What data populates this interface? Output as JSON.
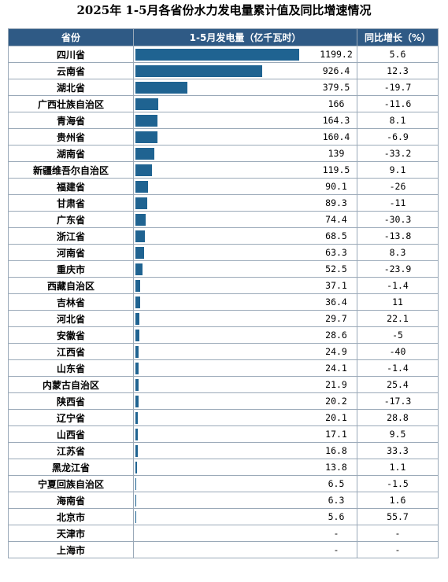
{
  "title": "2025年 1-5月各省份水力发电量累计值及同比增速情况",
  "headers": {
    "province": "省份",
    "value": "1-5月发电量（亿千瓦时）",
    "yoy": "同比增长（%）"
  },
  "chart_data": {
    "type": "bar",
    "orientation": "horizontal",
    "unit": "亿千瓦时",
    "categories": [
      "四川省",
      "云南省",
      "湖北省",
      "广西壮族自治区",
      "青海省",
      "贵州省",
      "湖南省",
      "新疆维吾尔自治区",
      "福建省",
      "甘肃省",
      "广东省",
      "浙江省",
      "河南省",
      "重庆市",
      "西藏自治区",
      "吉林省",
      "河北省",
      "安徽省",
      "江西省",
      "山东省",
      "内蒙古自治区",
      "陕西省",
      "辽宁省",
      "山西省",
      "江苏省",
      "黑龙江省",
      "宁夏回族自治区",
      "海南省",
      "北京市",
      "天津市",
      "上海市"
    ],
    "values": [
      1199.2,
      926.4,
      379.5,
      166,
      164.3,
      160.4,
      139,
      119.5,
      90.1,
      89.3,
      74.4,
      68.5,
      63.3,
      52.5,
      37.1,
      36.4,
      29.7,
      28.6,
      24.9,
      24.1,
      21.9,
      20.2,
      20.1,
      17.1,
      16.8,
      13.8,
      6.5,
      6.3,
      5.6,
      null,
      null
    ],
    "value_labels": [
      "1199.2",
      "926.4",
      "379.5",
      "166",
      "164.3",
      "160.4",
      "139",
      "119.5",
      "90.1",
      "89.3",
      "74.4",
      "68.5",
      "63.3",
      "52.5",
      "37.1",
      "36.4",
      "29.7",
      "28.6",
      "24.9",
      "24.1",
      "21.9",
      "20.2",
      "20.1",
      "17.1",
      "16.8",
      "13.8",
      "6.5",
      "6.3",
      "5.6",
      "-",
      "-"
    ],
    "yoy_labels": [
      "5.6",
      "12.3",
      "-19.7",
      "-11.6",
      "8.1",
      "-6.9",
      "-33.2",
      "9.1",
      "-26",
      "-11",
      "-30.3",
      "-13.8",
      "8.3",
      "-23.9",
      "-1.4",
      "11",
      "22.1",
      "-5",
      "-40",
      "-1.4",
      "25.4",
      "-17.3",
      "28.8",
      "9.5",
      "33.3",
      "1.1",
      "-1.5",
      "1.6",
      "55.7",
      "-",
      "-"
    ],
    "bar_color": "#1f6391",
    "header_color": "#2f5a85"
  }
}
